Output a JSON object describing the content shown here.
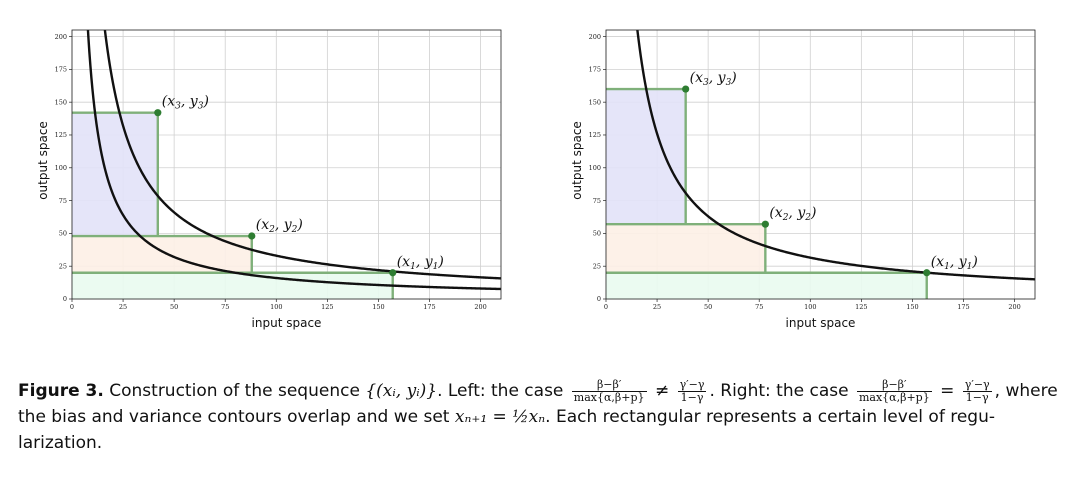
{
  "chart_data": [
    {
      "type": "line",
      "xlabel": "input space",
      "ylabel": "output space",
      "xlim": [
        0,
        210
      ],
      "ylim": [
        0,
        205
      ],
      "xticks": [
        0,
        25,
        50,
        75,
        100,
        125,
        150,
        175,
        200
      ],
      "yticks": [
        0,
        25,
        50,
        75,
        100,
        125,
        150,
        175,
        200
      ],
      "grid": true,
      "series": [
        {
          "kind": "curve",
          "k": 3300
        },
        {
          "kind": "curve",
          "k": 1600
        }
      ],
      "rectangles": [
        {
          "x": [
            0,
            157
          ],
          "y": [
            0,
            20
          ],
          "fill": "#e9fbef"
        },
        {
          "x": [
            0,
            88
          ],
          "y": [
            20,
            48
          ],
          "fill": "#fdf0e6"
        },
        {
          "x": [
            0,
            42
          ],
          "y": [
            48,
            142
          ],
          "fill": "#e2e2f8"
        }
      ],
      "points": [
        {
          "label": "(x3, y3)",
          "x": 42,
          "y": 142
        },
        {
          "label": "(x2, y2)",
          "x": 88,
          "y": 48
        },
        {
          "label": "(x1, y1)",
          "x": 157,
          "y": 20
        }
      ]
    },
    {
      "type": "line",
      "xlabel": "input space",
      "ylabel": "output space",
      "xlim": [
        0,
        210
      ],
      "ylim": [
        0,
        205
      ],
      "xticks": [
        0,
        25,
        50,
        75,
        100,
        125,
        150,
        175,
        200
      ],
      "yticks": [
        0,
        25,
        50,
        75,
        100,
        125,
        150,
        175,
        200
      ],
      "grid": true,
      "series": [
        {
          "kind": "curve",
          "k": 3150
        }
      ],
      "rectangles": [
        {
          "x": [
            0,
            157
          ],
          "y": [
            0,
            20
          ],
          "fill": "#e9fbef"
        },
        {
          "x": [
            0,
            78
          ],
          "y": [
            20,
            57
          ],
          "fill": "#fdf0e6"
        },
        {
          "x": [
            0,
            39
          ],
          "y": [
            57,
            160
          ],
          "fill": "#e2e2f8"
        }
      ],
      "points": [
        {
          "label": "(x3, y3)",
          "x": 39,
          "y": 160
        },
        {
          "label": "(x2, y2)",
          "x": 78,
          "y": 57
        },
        {
          "label": "(x1, y1)",
          "x": 157,
          "y": 20
        }
      ]
    }
  ],
  "caption": {
    "fig_label": "Figure 3.",
    "t1": "Construction of the sequence",
    "seq": "{(xᵢ, yᵢ)}",
    "t2": ". Left: the case",
    "f1_num": "β−β′",
    "f1_den": "max{α,β+p}",
    "neq": "≠",
    "f2_num": "γ′−γ",
    "f2_den": "1−γ",
    "t3": ". Right: the case",
    "eq": "=",
    "t4": ",",
    "t5": "where the bias and variance contours overlap and we set",
    "math1": "xₙ₊₁ = ½xₙ",
    "t6": ". Each rectangular represents a certain level of regu-",
    "t7": "larization."
  },
  "colors": {
    "curve": "#111111",
    "rect_edge": "#7fb07a",
    "point": "#2e7d32",
    "grid": "#d0d0d0"
  }
}
